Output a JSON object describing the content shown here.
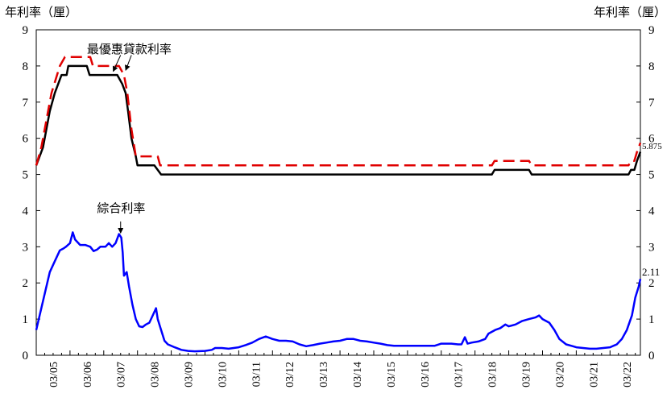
{
  "chart_data": {
    "type": "line",
    "ylabel_left": "年利率（厘）",
    "ylabel_right": "年利率（厘）",
    "ylim": [
      0,
      9
    ],
    "yticks": [
      0,
      1,
      2,
      3,
      4,
      5,
      6,
      7,
      8,
      9
    ],
    "xlim": [
      2005.0,
      2022.9
    ],
    "xtick_labels": [
      "03/05",
      "03/06",
      "03/07",
      "03/08",
      "03/09",
      "03/10",
      "03/11",
      "03/12",
      "03/13",
      "03/14",
      "03/15",
      "03/16",
      "03/17",
      "03/18",
      "03/19",
      "03/20",
      "03/21",
      "03/22"
    ],
    "annotations": [
      {
        "id": "prime",
        "text": "最優惠貸款利率"
      },
      {
        "id": "composite",
        "text": "綜合利率"
      },
      {
        "id": "prime-end",
        "text": "5.875"
      },
      {
        "id": "composite-end",
        "text": "2.11"
      }
    ],
    "series": [
      {
        "key": "prime_low",
        "color": "#000000",
        "dash": "solid",
        "points": [
          [
            2005.0,
            5.25
          ],
          [
            2005.2,
            5.75
          ],
          [
            2005.4,
            6.75
          ],
          [
            2005.55,
            7.25
          ],
          [
            2005.75,
            7.75
          ],
          [
            2005.9,
            7.75
          ],
          [
            2005.95,
            8.0
          ],
          [
            2006.5,
            8.0
          ],
          [
            2006.58,
            7.75
          ],
          [
            2007.4,
            7.75
          ],
          [
            2007.55,
            7.5
          ],
          [
            2007.65,
            7.25
          ],
          [
            2007.72,
            6.75
          ],
          [
            2007.82,
            6.0
          ],
          [
            2007.95,
            5.5
          ],
          [
            2008.0,
            5.25
          ],
          [
            2008.5,
            5.25
          ],
          [
            2008.7,
            5.0
          ],
          [
            2018.5,
            5.0
          ],
          [
            2018.58,
            5.125
          ],
          [
            2019.6,
            5.125
          ],
          [
            2019.68,
            5.0
          ],
          [
            2022.55,
            5.0
          ],
          [
            2022.62,
            5.125
          ],
          [
            2022.72,
            5.125
          ],
          [
            2022.8,
            5.375
          ],
          [
            2022.9,
            5.625
          ]
        ]
      },
      {
        "key": "prime_high",
        "color": "#e00000",
        "dash": "dashed",
        "points": [
          [
            2005.0,
            5.25
          ],
          [
            2005.15,
            5.75
          ],
          [
            2005.3,
            6.5
          ],
          [
            2005.45,
            7.25
          ],
          [
            2005.7,
            8.0
          ],
          [
            2005.85,
            8.25
          ],
          [
            2006.6,
            8.25
          ],
          [
            2006.68,
            8.0
          ],
          [
            2007.45,
            8.0
          ],
          [
            2007.6,
            7.75
          ],
          [
            2007.7,
            7.25
          ],
          [
            2007.82,
            6.25
          ],
          [
            2007.95,
            5.5
          ],
          [
            2008.6,
            5.5
          ],
          [
            2008.67,
            5.25
          ],
          [
            2018.5,
            5.25
          ],
          [
            2018.58,
            5.375
          ],
          [
            2019.6,
            5.375
          ],
          [
            2019.68,
            5.25
          ],
          [
            2022.55,
            5.25
          ],
          [
            2022.62,
            5.375
          ],
          [
            2022.72,
            5.375
          ],
          [
            2022.8,
            5.625
          ],
          [
            2022.9,
            5.875
          ]
        ]
      },
      {
        "key": "composite",
        "color": "#0000ff",
        "dash": "solid",
        "points": [
          [
            2005.0,
            0.7
          ],
          [
            2005.1,
            1.1
          ],
          [
            2005.25,
            1.7
          ],
          [
            2005.4,
            2.3
          ],
          [
            2005.55,
            2.6
          ],
          [
            2005.7,
            2.9
          ],
          [
            2005.8,
            2.95
          ],
          [
            2005.88,
            3.0
          ],
          [
            2006.0,
            3.1
          ],
          [
            2006.08,
            3.4
          ],
          [
            2006.15,
            3.2
          ],
          [
            2006.3,
            3.05
          ],
          [
            2006.45,
            3.05
          ],
          [
            2006.6,
            3.0
          ],
          [
            2006.7,
            2.88
          ],
          [
            2006.8,
            2.92
          ],
          [
            2006.9,
            3.0
          ],
          [
            2007.05,
            3.0
          ],
          [
            2007.15,
            3.1
          ],
          [
            2007.25,
            3.0
          ],
          [
            2007.35,
            3.1
          ],
          [
            2007.45,
            3.35
          ],
          [
            2007.52,
            3.25
          ],
          [
            2007.56,
            2.85
          ],
          [
            2007.6,
            2.2
          ],
          [
            2007.68,
            2.3
          ],
          [
            2007.75,
            1.9
          ],
          [
            2007.85,
            1.4
          ],
          [
            2007.95,
            1.0
          ],
          [
            2008.05,
            0.8
          ],
          [
            2008.15,
            0.78
          ],
          [
            2008.25,
            0.85
          ],
          [
            2008.35,
            0.9
          ],
          [
            2008.45,
            1.1
          ],
          [
            2008.55,
            1.3
          ],
          [
            2008.6,
            1.0
          ],
          [
            2008.7,
            0.7
          ],
          [
            2008.8,
            0.4
          ],
          [
            2008.9,
            0.3
          ],
          [
            2009.1,
            0.22
          ],
          [
            2009.3,
            0.15
          ],
          [
            2009.5,
            0.12
          ],
          [
            2009.7,
            0.11
          ],
          [
            2010.0,
            0.12
          ],
          [
            2010.2,
            0.15
          ],
          [
            2010.3,
            0.2
          ],
          [
            2010.5,
            0.2
          ],
          [
            2010.7,
            0.18
          ],
          [
            2011.0,
            0.22
          ],
          [
            2011.2,
            0.28
          ],
          [
            2011.4,
            0.35
          ],
          [
            2011.6,
            0.45
          ],
          [
            2011.8,
            0.52
          ],
          [
            2012.0,
            0.45
          ],
          [
            2012.2,
            0.4
          ],
          [
            2012.4,
            0.4
          ],
          [
            2012.6,
            0.38
          ],
          [
            2012.8,
            0.3
          ],
          [
            2013.0,
            0.25
          ],
          [
            2013.2,
            0.28
          ],
          [
            2013.4,
            0.32
          ],
          [
            2013.6,
            0.35
          ],
          [
            2013.8,
            0.38
          ],
          [
            2014.0,
            0.4
          ],
          [
            2014.2,
            0.45
          ],
          [
            2014.4,
            0.45
          ],
          [
            2014.6,
            0.4
          ],
          [
            2014.8,
            0.38
          ],
          [
            2015.0,
            0.35
          ],
          [
            2015.2,
            0.32
          ],
          [
            2015.4,
            0.28
          ],
          [
            2015.6,
            0.26
          ],
          [
            2016.0,
            0.26
          ],
          [
            2016.4,
            0.26
          ],
          [
            2016.8,
            0.26
          ],
          [
            2017.0,
            0.32
          ],
          [
            2017.3,
            0.32
          ],
          [
            2017.5,
            0.3
          ],
          [
            2017.6,
            0.3
          ],
          [
            2017.7,
            0.5
          ],
          [
            2017.78,
            0.32
          ],
          [
            2017.9,
            0.35
          ],
          [
            2018.1,
            0.38
          ],
          [
            2018.3,
            0.45
          ],
          [
            2018.4,
            0.6
          ],
          [
            2018.6,
            0.7
          ],
          [
            2018.75,
            0.75
          ],
          [
            2018.9,
            0.85
          ],
          [
            2019.0,
            0.8
          ],
          [
            2019.2,
            0.85
          ],
          [
            2019.4,
            0.95
          ],
          [
            2019.6,
            1.0
          ],
          [
            2019.8,
            1.05
          ],
          [
            2019.9,
            1.1
          ],
          [
            2020.0,
            1.0
          ],
          [
            2020.2,
            0.9
          ],
          [
            2020.35,
            0.7
          ],
          [
            2020.5,
            0.45
          ],
          [
            2020.7,
            0.3
          ],
          [
            2020.9,
            0.25
          ],
          [
            2021.0,
            0.22
          ],
          [
            2021.2,
            0.2
          ],
          [
            2021.4,
            0.18
          ],
          [
            2021.6,
            0.18
          ],
          [
            2021.8,
            0.2
          ],
          [
            2022.0,
            0.22
          ],
          [
            2022.2,
            0.3
          ],
          [
            2022.35,
            0.45
          ],
          [
            2022.5,
            0.7
          ],
          [
            2022.65,
            1.1
          ],
          [
            2022.75,
            1.6
          ],
          [
            2022.85,
            1.9
          ],
          [
            2022.9,
            2.11
          ]
        ]
      }
    ]
  }
}
